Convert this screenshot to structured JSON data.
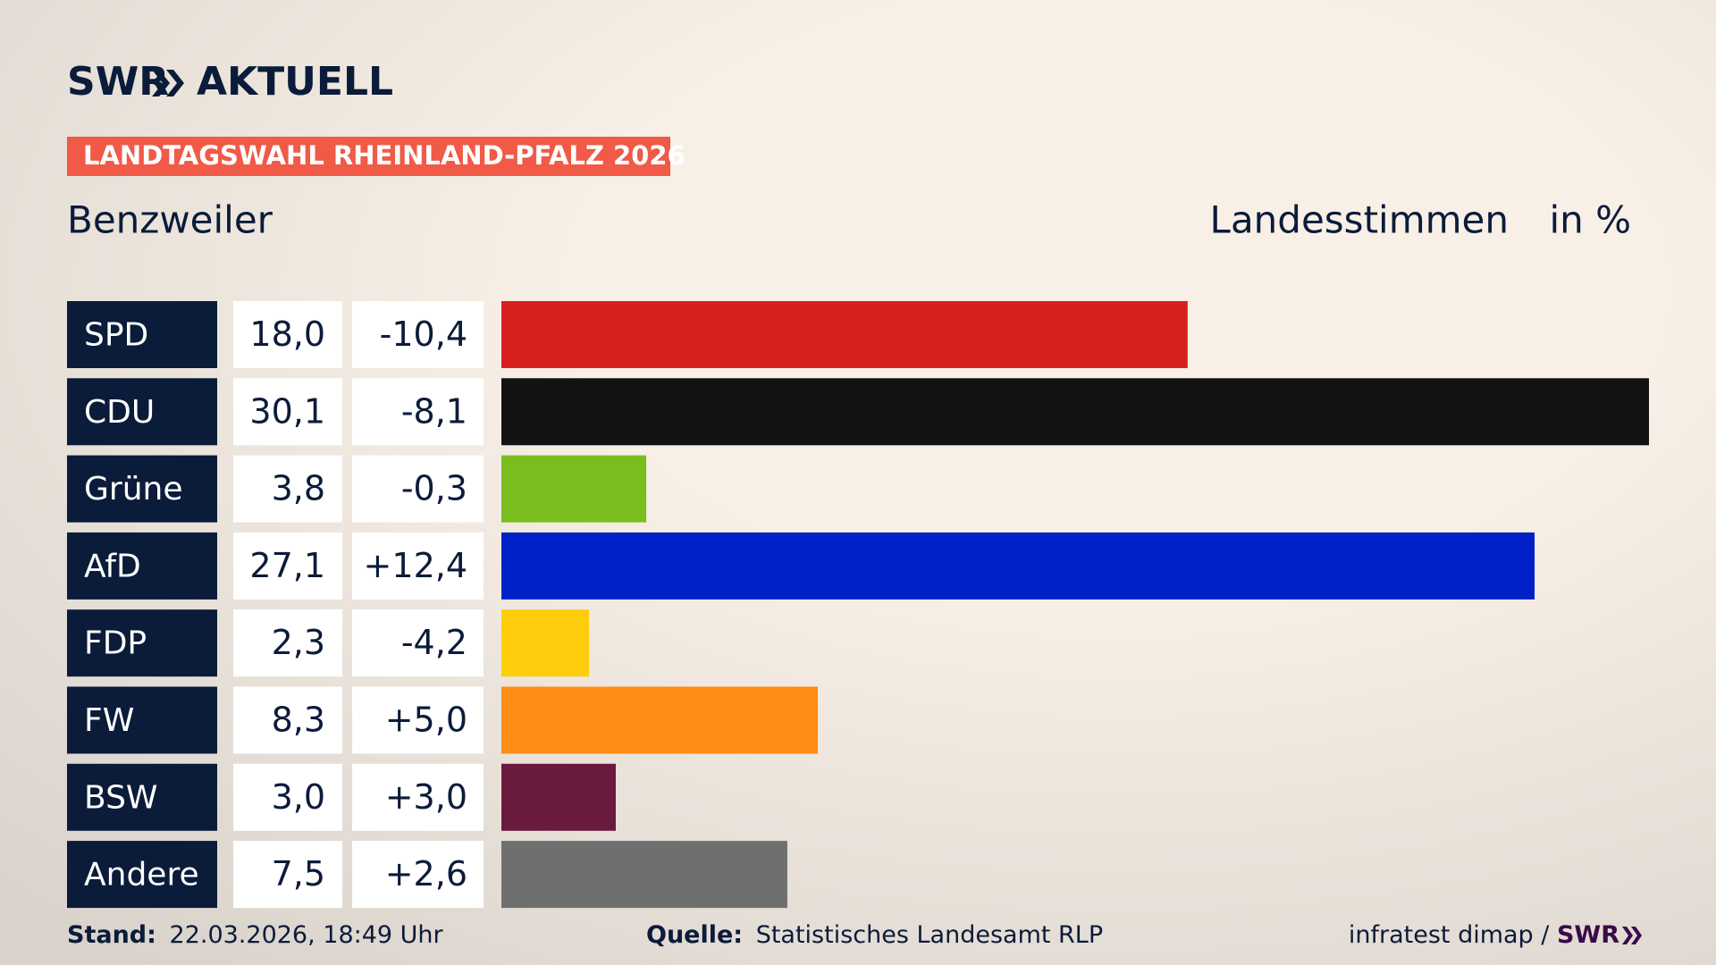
{
  "brand": {
    "left": "SWR",
    "right": "AKTUELL"
  },
  "chart_data": {
    "type": "bar",
    "title": "LANDTAGSWAHL RHEINLAND-PFALZ 2026",
    "subtitle": "Benzweiler",
    "value_header": "Landesstimmen",
    "unit": "in %",
    "categories": [
      "SPD",
      "CDU",
      "Grüne",
      "AfD",
      "FDP",
      "FW",
      "BSW",
      "Andere"
    ],
    "values": [
      18.0,
      30.1,
      3.8,
      27.1,
      2.3,
      8.3,
      3.0,
      7.5
    ],
    "value_labels": [
      "18,0",
      "30,1",
      "3,8",
      "27,1",
      "2,3",
      "8,3",
      "3,0",
      "7,5"
    ],
    "changes": [
      "-10,4",
      "-8,1",
      "-0,3",
      "+12,4",
      "-4,2",
      "+5,0",
      "+3,0",
      "+2,6"
    ],
    "colors": [
      "#d81f1f",
      "#121212",
      "#79bd1e",
      "#0021c8",
      "#fecd0b",
      "#fe8c17",
      "#6a1a3d",
      "#6f6f6f"
    ],
    "xlim": [
      0,
      30.1
    ]
  },
  "footer": {
    "stand_label": "Stand:",
    "stand": "22.03.2026, 18:49 Uhr",
    "source_label": "Quelle:",
    "source": "Statistisches Landesamt RLP",
    "credit": "infratest dimap / ",
    "credit_brand": "SWR"
  }
}
